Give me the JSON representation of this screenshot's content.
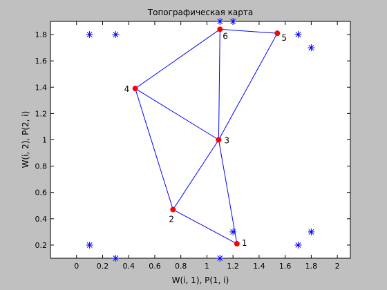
{
  "chart_data": {
    "type": "scatter",
    "title": "Топографическая карта",
    "xlabel": "W(i, 1), P(1, i)",
    "ylabel": "W(i, 2), P(2, i)",
    "xlim": [
      -0.2,
      2.1
    ],
    "ylim": [
      0.1,
      1.9
    ],
    "xticks": [
      0,
      0.2,
      0.4,
      0.6,
      0.8,
      1,
      1.2,
      1.4,
      1.6,
      1.8,
      2
    ],
    "yticks": [
      0.2,
      0.4,
      0.6,
      0.8,
      1,
      1.2,
      1.4,
      1.6,
      1.8
    ],
    "xtick_labels": [
      "0",
      "0.2",
      "0.4",
      "0.6",
      "0.8",
      "1",
      "1.2",
      "1.4",
      "1.6",
      "1.8",
      "2"
    ],
    "ytick_labels": [
      "0.2",
      "0.4",
      "0.6",
      "0.8",
      "1",
      "1.2",
      "1.4",
      "1.6",
      "1.8"
    ],
    "grid": false,
    "series": [
      {
        "marker": "asterisk",
        "color": "#0000ff",
        "points": [
          {
            "x": 0.1,
            "y": 1.8
          },
          {
            "x": 0.3,
            "y": 1.8
          },
          {
            "x": 1.1,
            "y": 1.9
          },
          {
            "x": 1.2,
            "y": 1.9
          },
          {
            "x": 1.7,
            "y": 1.8
          },
          {
            "x": 1.8,
            "y": 1.7
          },
          {
            "x": 0.1,
            "y": 0.2
          },
          {
            "x": 0.3,
            "y": 0.1
          },
          {
            "x": 1.1,
            "y": 0.1
          },
          {
            "x": 1.2,
            "y": 0.3
          },
          {
            "x": 1.7,
            "y": 0.2
          },
          {
            "x": 1.8,
            "y": 0.3
          }
        ]
      },
      {
        "marker": "dot",
        "color": "#ff0000",
        "line_color": "#0000ff",
        "points": [
          {
            "label": "1",
            "x": 1.23,
            "y": 0.21
          },
          {
            "label": "2",
            "x": 0.74,
            "y": 0.47
          },
          {
            "label": "3",
            "x": 1.09,
            "y": 1.0
          },
          {
            "label": "4",
            "x": 0.45,
            "y": 1.39
          },
          {
            "label": "5",
            "x": 1.54,
            "y": 1.81
          },
          {
            "label": "6",
            "x": 1.1,
            "y": 1.84
          }
        ],
        "edges": [
          [
            1,
            2
          ],
          [
            1,
            3
          ],
          [
            2,
            3
          ],
          [
            2,
            4
          ],
          [
            3,
            4
          ],
          [
            3,
            5
          ],
          [
            3,
            6
          ],
          [
            4,
            6
          ],
          [
            5,
            6
          ]
        ]
      }
    ]
  }
}
